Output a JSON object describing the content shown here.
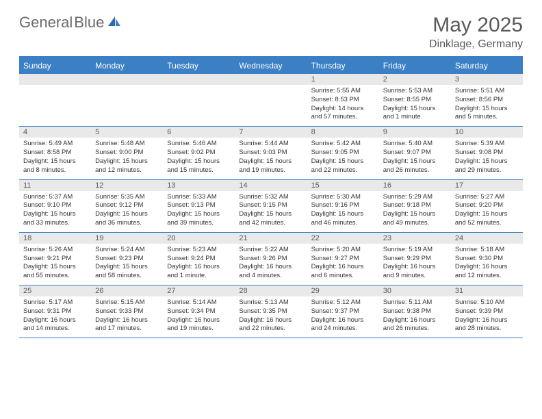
{
  "logo": {
    "textGray": "General",
    "textBlue": "Blue"
  },
  "title": "May 2025",
  "location": "Dinklage, Germany",
  "colors": {
    "accent": "#3b7fc4",
    "headerText": "#ffffff",
    "daynumBg": "#e9e9e9",
    "bodyText": "#333333",
    "titleText": "#595959"
  },
  "dayNames": [
    "Sunday",
    "Monday",
    "Tuesday",
    "Wednesday",
    "Thursday",
    "Friday",
    "Saturday"
  ],
  "weeks": [
    [
      {
        "num": "",
        "sunrise": "",
        "sunset": "",
        "daylight": ""
      },
      {
        "num": "",
        "sunrise": "",
        "sunset": "",
        "daylight": ""
      },
      {
        "num": "",
        "sunrise": "",
        "sunset": "",
        "daylight": ""
      },
      {
        "num": "",
        "sunrise": "",
        "sunset": "",
        "daylight": ""
      },
      {
        "num": "1",
        "sunrise": "Sunrise: 5:55 AM",
        "sunset": "Sunset: 8:53 PM",
        "daylight": "Daylight: 14 hours and 57 minutes."
      },
      {
        "num": "2",
        "sunrise": "Sunrise: 5:53 AM",
        "sunset": "Sunset: 8:55 PM",
        "daylight": "Daylight: 15 hours and 1 minute."
      },
      {
        "num": "3",
        "sunrise": "Sunrise: 5:51 AM",
        "sunset": "Sunset: 8:56 PM",
        "daylight": "Daylight: 15 hours and 5 minutes."
      }
    ],
    [
      {
        "num": "4",
        "sunrise": "Sunrise: 5:49 AM",
        "sunset": "Sunset: 8:58 PM",
        "daylight": "Daylight: 15 hours and 8 minutes."
      },
      {
        "num": "5",
        "sunrise": "Sunrise: 5:48 AM",
        "sunset": "Sunset: 9:00 PM",
        "daylight": "Daylight: 15 hours and 12 minutes."
      },
      {
        "num": "6",
        "sunrise": "Sunrise: 5:46 AM",
        "sunset": "Sunset: 9:02 PM",
        "daylight": "Daylight: 15 hours and 15 minutes."
      },
      {
        "num": "7",
        "sunrise": "Sunrise: 5:44 AM",
        "sunset": "Sunset: 9:03 PM",
        "daylight": "Daylight: 15 hours and 19 minutes."
      },
      {
        "num": "8",
        "sunrise": "Sunrise: 5:42 AM",
        "sunset": "Sunset: 9:05 PM",
        "daylight": "Daylight: 15 hours and 22 minutes."
      },
      {
        "num": "9",
        "sunrise": "Sunrise: 5:40 AM",
        "sunset": "Sunset: 9:07 PM",
        "daylight": "Daylight: 15 hours and 26 minutes."
      },
      {
        "num": "10",
        "sunrise": "Sunrise: 5:39 AM",
        "sunset": "Sunset: 9:08 PM",
        "daylight": "Daylight: 15 hours and 29 minutes."
      }
    ],
    [
      {
        "num": "11",
        "sunrise": "Sunrise: 5:37 AM",
        "sunset": "Sunset: 9:10 PM",
        "daylight": "Daylight: 15 hours and 33 minutes."
      },
      {
        "num": "12",
        "sunrise": "Sunrise: 5:35 AM",
        "sunset": "Sunset: 9:12 PM",
        "daylight": "Daylight: 15 hours and 36 minutes."
      },
      {
        "num": "13",
        "sunrise": "Sunrise: 5:33 AM",
        "sunset": "Sunset: 9:13 PM",
        "daylight": "Daylight: 15 hours and 39 minutes."
      },
      {
        "num": "14",
        "sunrise": "Sunrise: 5:32 AM",
        "sunset": "Sunset: 9:15 PM",
        "daylight": "Daylight: 15 hours and 42 minutes."
      },
      {
        "num": "15",
        "sunrise": "Sunrise: 5:30 AM",
        "sunset": "Sunset: 9:16 PM",
        "daylight": "Daylight: 15 hours and 46 minutes."
      },
      {
        "num": "16",
        "sunrise": "Sunrise: 5:29 AM",
        "sunset": "Sunset: 9:18 PM",
        "daylight": "Daylight: 15 hours and 49 minutes."
      },
      {
        "num": "17",
        "sunrise": "Sunrise: 5:27 AM",
        "sunset": "Sunset: 9:20 PM",
        "daylight": "Daylight: 15 hours and 52 minutes."
      }
    ],
    [
      {
        "num": "18",
        "sunrise": "Sunrise: 5:26 AM",
        "sunset": "Sunset: 9:21 PM",
        "daylight": "Daylight: 15 hours and 55 minutes."
      },
      {
        "num": "19",
        "sunrise": "Sunrise: 5:24 AM",
        "sunset": "Sunset: 9:23 PM",
        "daylight": "Daylight: 15 hours and 58 minutes."
      },
      {
        "num": "20",
        "sunrise": "Sunrise: 5:23 AM",
        "sunset": "Sunset: 9:24 PM",
        "daylight": "Daylight: 16 hours and 1 minute."
      },
      {
        "num": "21",
        "sunrise": "Sunrise: 5:22 AM",
        "sunset": "Sunset: 9:26 PM",
        "daylight": "Daylight: 16 hours and 4 minutes."
      },
      {
        "num": "22",
        "sunrise": "Sunrise: 5:20 AM",
        "sunset": "Sunset: 9:27 PM",
        "daylight": "Daylight: 16 hours and 6 minutes."
      },
      {
        "num": "23",
        "sunrise": "Sunrise: 5:19 AM",
        "sunset": "Sunset: 9:29 PM",
        "daylight": "Daylight: 16 hours and 9 minutes."
      },
      {
        "num": "24",
        "sunrise": "Sunrise: 5:18 AM",
        "sunset": "Sunset: 9:30 PM",
        "daylight": "Daylight: 16 hours and 12 minutes."
      }
    ],
    [
      {
        "num": "25",
        "sunrise": "Sunrise: 5:17 AM",
        "sunset": "Sunset: 9:31 PM",
        "daylight": "Daylight: 16 hours and 14 minutes."
      },
      {
        "num": "26",
        "sunrise": "Sunrise: 5:15 AM",
        "sunset": "Sunset: 9:33 PM",
        "daylight": "Daylight: 16 hours and 17 minutes."
      },
      {
        "num": "27",
        "sunrise": "Sunrise: 5:14 AM",
        "sunset": "Sunset: 9:34 PM",
        "daylight": "Daylight: 16 hours and 19 minutes."
      },
      {
        "num": "28",
        "sunrise": "Sunrise: 5:13 AM",
        "sunset": "Sunset: 9:35 PM",
        "daylight": "Daylight: 16 hours and 22 minutes."
      },
      {
        "num": "29",
        "sunrise": "Sunrise: 5:12 AM",
        "sunset": "Sunset: 9:37 PM",
        "daylight": "Daylight: 16 hours and 24 minutes."
      },
      {
        "num": "30",
        "sunrise": "Sunrise: 5:11 AM",
        "sunset": "Sunset: 9:38 PM",
        "daylight": "Daylight: 16 hours and 26 minutes."
      },
      {
        "num": "31",
        "sunrise": "Sunrise: 5:10 AM",
        "sunset": "Sunset: 9:39 PM",
        "daylight": "Daylight: 16 hours and 28 minutes."
      }
    ]
  ]
}
